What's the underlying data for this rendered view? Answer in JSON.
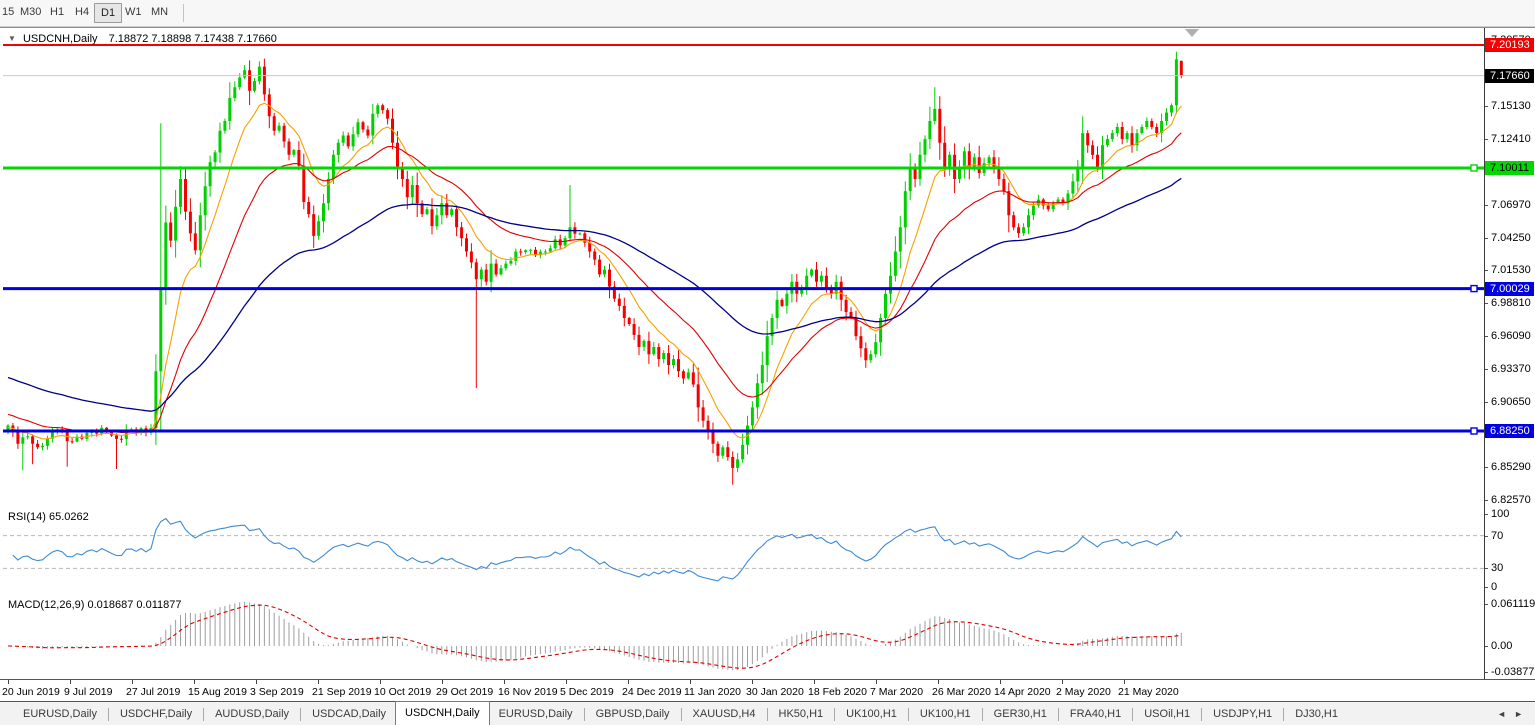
{
  "toolbar": {
    "timeframes": [
      {
        "label": "15",
        "active": false
      },
      {
        "label": "M30",
        "active": false
      },
      {
        "label": "H1",
        "active": false
      },
      {
        "label": "H4",
        "active": false
      },
      {
        "label": "D1",
        "active": true
      },
      {
        "label": "W1",
        "active": false
      },
      {
        "label": "MN",
        "active": false
      }
    ]
  },
  "chart": {
    "title_symbol": "USDCNH,Daily",
    "title_ohlc": "7.18872 7.18898 7.17438 7.17660",
    "dropdown_caret": "▼"
  },
  "indicators": {
    "rsi_label": "RSI(14) 65.0262",
    "macd_label": "MACD(12,26,9) 0.018687 0.011877"
  },
  "chart_data": {
    "type": "candlestick",
    "symbol": "USDCNH",
    "timeframe": "Daily",
    "ohlc_current": {
      "open": "7.18872",
      "high": "7.18898",
      "low": "7.17438",
      "close": "7.17660"
    },
    "num_candles": 239,
    "x_tick_dates": [
      "20 Jun 2019",
      "9 Jul 2019",
      "27 Jul 2019",
      "15 Aug 2019",
      "3 Sep 2019",
      "21 Sep 2019",
      "10 Oct 2019",
      "29 Oct 2019",
      "16 Nov 2019",
      "5 Dec 2019",
      "24 Dec 2019",
      "11 Jan 2020",
      "30 Jan 2020",
      "18 Feb 2020",
      "7 Mar 2020",
      "26 Mar 2020",
      "14 Apr 2020",
      "2 May 2020",
      "21 May 2020"
    ],
    "price_axis_ticks": [
      "7.20570",
      "7.15130",
      "7.12410",
      "7.09690",
      "7.06970",
      "7.04250",
      "7.01530",
      "6.98810",
      "6.96090",
      "6.93370",
      "6.90650",
      "6.87930",
      "6.85290",
      "6.82570"
    ],
    "price_badges": [
      {
        "label": "7.20193",
        "bg": "#f40000",
        "fg": "#ffffff",
        "name": "resistance-level-price"
      },
      {
        "label": "7.17660",
        "bg": "#000000",
        "fg": "#ffffff",
        "name": "current-price"
      },
      {
        "label": "7.10011",
        "bg": "#00d800",
        "fg": "#000000",
        "name": "mid-level-price"
      },
      {
        "label": "7.00029",
        "bg": "#0000e0",
        "fg": "#ffffff",
        "name": "support-level-price"
      },
      {
        "label": "6.88250",
        "bg": "#0000e0",
        "fg": "#ffffff",
        "name": "lower-support-level-price"
      }
    ],
    "levels": [
      {
        "value": "7.20193",
        "color": "#f40000",
        "width": 2,
        "handle": false
      },
      {
        "value": "7.17660",
        "color": "#c8c8c8",
        "width": 1,
        "handle": false
      },
      {
        "value": "7.10011",
        "color": "#00d800",
        "width": 3,
        "handle": true
      },
      {
        "value": "7.00029",
        "color": "#0000e0",
        "width": 3,
        "handle": true
      },
      {
        "value": "6.88250",
        "color": "#0000e0",
        "width": 3,
        "handle": true
      }
    ],
    "moving_averages": [
      {
        "name": "ma-fast",
        "period": 10,
        "color": "#f8a000",
        "seed": 6.885,
        "stroke": 1.1
      },
      {
        "name": "ma-mid",
        "period": 25,
        "color": "#e00000",
        "seed": 6.897,
        "stroke": 1.1
      },
      {
        "name": "ma-slow",
        "period": 65,
        "color": "#000088",
        "seed": 6.928,
        "stroke": 1.3
      }
    ],
    "rsi": {
      "period": 14,
      "value": "65.0262",
      "axis_ticks": [
        "100",
        "70",
        "30",
        "0"
      ],
      "guide_levels": [
        70,
        30
      ],
      "color": "#3d8bd4"
    },
    "macd": {
      "fast": 12,
      "slow": 26,
      "signal": 9,
      "macd_value": "0.018687",
      "signal_value": "0.011877",
      "axis_ticks": [
        "0.061119",
        "0.00",
        "-0.038777"
      ],
      "hist_color": "#9e9e9e",
      "signal_color": "#e00000"
    },
    "candle_colors": {
      "bull": "#00cf00",
      "bear": "#f30000"
    },
    "arrow_marker": {
      "shape": "down-arrow",
      "color": "#b0b0b0"
    },
    "close_waypoints": [
      [
        0,
        6.887
      ],
      [
        2,
        6.872
      ],
      [
        4,
        6.878
      ],
      [
        6,
        6.869
      ],
      [
        8,
        6.876
      ],
      [
        10,
        6.884
      ],
      [
        12,
        6.874
      ],
      [
        15,
        6.876
      ],
      [
        17,
        6.883
      ],
      [
        20,
        6.882
      ],
      [
        22,
        6.876
      ],
      [
        25,
        6.884
      ],
      [
        28,
        6.881
      ],
      [
        29,
        6.885
      ],
      [
        30,
        6.932
      ],
      [
        31,
        7.001
      ],
      [
        32,
        7.055
      ],
      [
        33,
        7.04
      ],
      [
        34,
        7.068
      ],
      [
        35,
        7.091
      ],
      [
        36,
        7.064
      ],
      [
        37,
        7.046
      ],
      [
        38,
        7.032
      ],
      [
        39,
        7.061
      ],
      [
        40,
        7.085
      ],
      [
        41,
        7.105
      ],
      [
        42,
        7.113
      ],
      [
        43,
        7.131
      ],
      [
        44,
        7.139
      ],
      [
        45,
        7.158
      ],
      [
        46,
        7.167
      ],
      [
        47,
        7.175
      ],
      [
        48,
        7.181
      ],
      [
        49,
        7.164
      ],
      [
        50,
        7.172
      ],
      [
        51,
        7.184
      ],
      [
        52,
        7.161
      ],
      [
        53,
        7.143
      ],
      [
        54,
        7.131
      ],
      [
        55,
        7.135
      ],
      [
        56,
        7.122
      ],
      [
        57,
        7.111
      ],
      [
        58,
        7.115
      ],
      [
        59,
        7.102
      ],
      [
        60,
        7.072
      ],
      [
        61,
        7.062
      ],
      [
        62,
        7.044
      ],
      [
        63,
        7.056
      ],
      [
        64,
        7.071
      ],
      [
        65,
        7.091
      ],
      [
        66,
        7.111
      ],
      [
        67,
        7.121
      ],
      [
        68,
        7.127
      ],
      [
        69,
        7.118
      ],
      [
        70,
        7.128
      ],
      [
        71,
        7.138
      ],
      [
        72,
        7.132
      ],
      [
        73,
        7.127
      ],
      [
        74,
        7.145
      ],
      [
        75,
        7.152
      ],
      [
        76,
        7.148
      ],
      [
        77,
        7.141
      ],
      [
        78,
        7.121
      ],
      [
        79,
        7.101
      ],
      [
        80,
        7.091
      ],
      [
        81,
        7.076
      ],
      [
        82,
        7.086
      ],
      [
        83,
        7.071
      ],
      [
        84,
        7.062
      ],
      [
        85,
        7.066
      ],
      [
        86,
        7.052
      ],
      [
        87,
        7.061
      ],
      [
        88,
        7.071
      ],
      [
        89,
        7.061
      ],
      [
        90,
        7.066
      ],
      [
        91,
        7.051
      ],
      [
        92,
        7.042
      ],
      [
        93,
        7.031
      ],
      [
        94,
        7.022
      ],
      [
        95,
        7.008
      ],
      [
        96,
        7.016
      ],
      [
        97,
        7.006
      ],
      [
        98,
        7.021
      ],
      [
        99,
        7.012
      ],
      [
        101,
        7.021
      ],
      [
        103,
        7.031
      ],
      [
        105,
        7.032
      ],
      [
        107,
        7.028
      ],
      [
        109,
        7.031
      ],
      [
        111,
        7.041
      ],
      [
        112,
        7.036
      ],
      [
        113,
        7.042
      ],
      [
        114,
        7.051
      ],
      [
        116,
        7.046
      ],
      [
        118,
        7.031
      ],
      [
        120,
        7.012
      ],
      [
        121,
        7.016
      ],
      [
        122,
        7.002
      ],
      [
        123,
        6.992
      ],
      [
        124,
        6.986
      ],
      [
        125,
        6.976
      ],
      [
        126,
        6.971
      ],
      [
        127,
        6.962
      ],
      [
        128,
        6.952
      ],
      [
        129,
        6.957
      ],
      [
        130,
        6.946
      ],
      [
        131,
        6.952
      ],
      [
        132,
        6.942
      ],
      [
        133,
        6.947
      ],
      [
        134,
        6.937
      ],
      [
        135,
        6.942
      ],
      [
        136,
        6.932
      ],
      [
        137,
        6.926
      ],
      [
        138,
        6.931
      ],
      [
        139,
        6.921
      ],
      [
        140,
        6.902
      ],
      [
        141,
        6.891
      ],
      [
        142,
        6.882
      ],
      [
        143,
        6.872
      ],
      [
        144,
        6.862
      ],
      [
        145,
        6.869
      ],
      [
        146,
        6.861
      ],
      [
        147,
        6.852
      ],
      [
        148,
        6.859
      ],
      [
        149,
        6.871
      ],
      [
        150,
        6.887
      ],
      [
        151,
        6.902
      ],
      [
        152,
        6.922
      ],
      [
        153,
        6.937
      ],
      [
        154,
        6.961
      ],
      [
        155,
        6.976
      ],
      [
        156,
        6.991
      ],
      [
        157,
        6.986
      ],
      [
        158,
        6.996
      ],
      [
        159,
        7.006
      ],
      [
        160,
        6.996
      ],
      [
        161,
        7.001
      ],
      [
        162,
        7.011
      ],
      [
        163,
        7.016
      ],
      [
        164,
        7.006
      ],
      [
        165,
        7.011
      ],
      [
        166,
        7.001
      ],
      [
        167,
        6.996
      ],
      [
        168,
        7.006
      ],
      [
        169,
        6.991
      ],
      [
        170,
        6.981
      ],
      [
        171,
        6.976
      ],
      [
        172,
        6.961
      ],
      [
        173,
        6.951
      ],
      [
        174,
        6.941
      ],
      [
        175,
        6.946
      ],
      [
        176,
        6.956
      ],
      [
        177,
        6.976
      ],
      [
        178,
        6.996
      ],
      [
        179,
        7.011
      ],
      [
        180,
        7.031
      ],
      [
        181,
        7.051
      ],
      [
        182,
        7.081
      ],
      [
        183,
        7.101
      ],
      [
        184,
        7.091
      ],
      [
        185,
        7.111
      ],
      [
        186,
        7.124
      ],
      [
        187,
        7.139
      ],
      [
        188,
        7.149
      ],
      [
        189,
        7.121
      ],
      [
        190,
        7.101
      ],
      [
        191,
        7.111
      ],
      [
        192,
        7.091
      ],
      [
        193,
        7.101
      ],
      [
        194,
        7.114
      ],
      [
        195,
        7.101
      ],
      [
        196,
        7.109
      ],
      [
        197,
        7.096
      ],
      [
        198,
        7.104
      ],
      [
        199,
        7.109
      ],
      [
        200,
        7.101
      ],
      [
        201,
        7.091
      ],
      [
        202,
        7.081
      ],
      [
        203,
        7.061
      ],
      [
        204,
        7.051
      ],
      [
        205,
        7.046
      ],
      [
        206,
        7.051
      ],
      [
        207,
        7.061
      ],
      [
        208,
        7.069
      ],
      [
        209,
        7.074
      ],
      [
        210,
        7.069
      ],
      [
        211,
        7.066
      ],
      [
        212,
        7.071
      ],
      [
        213,
        7.074
      ],
      [
        214,
        7.071
      ],
      [
        215,
        7.079
      ],
      [
        216,
        7.089
      ],
      [
        217,
        7.101
      ],
      [
        218,
        7.129
      ],
      [
        219,
        7.119
      ],
      [
        220,
        7.111
      ],
      [
        221,
        7.101
      ],
      [
        222,
        7.119
      ],
      [
        223,
        7.124
      ],
      [
        224,
        7.129
      ],
      [
        225,
        7.134
      ],
      [
        226,
        7.124
      ],
      [
        227,
        7.129
      ],
      [
        228,
        7.119
      ],
      [
        229,
        7.129
      ],
      [
        230,
        7.134
      ],
      [
        231,
        7.139
      ],
      [
        232,
        7.134
      ],
      [
        233,
        7.129
      ],
      [
        234,
        7.139
      ],
      [
        235,
        7.146
      ],
      [
        236,
        7.152
      ],
      [
        237,
        7.19
      ],
      [
        238,
        7.1766
      ]
    ],
    "overrides": [
      {
        "i": 3,
        "l": 6.85
      },
      {
        "i": 5,
        "l": 6.855
      },
      {
        "i": 12,
        "l": 6.853
      },
      {
        "i": 22,
        "l": 6.851
      },
      {
        "i": 31,
        "h": 7.137,
        "l": 6.882
      },
      {
        "i": 95,
        "l": 6.918
      },
      {
        "i": 114,
        "h": 7.086
      },
      {
        "i": 147,
        "l": 6.838
      },
      {
        "i": 188,
        "h": 7.167
      },
      {
        "i": 237,
        "h": 7.1964,
        "l": 7.145
      },
      {
        "i": 238,
        "o": 7.18872,
        "h": 7.18898,
        "l": 7.17438,
        "c": 7.1766
      }
    ]
  },
  "tabs": {
    "items": [
      {
        "label": "EURUSD,Daily",
        "active": false
      },
      {
        "label": "USDCHF,Daily",
        "active": false
      },
      {
        "label": "AUDUSD,Daily",
        "active": false
      },
      {
        "label": "USDCAD,Daily",
        "active": false
      },
      {
        "label": "USDCNH,Daily",
        "active": true
      },
      {
        "label": "EURUSD,Daily",
        "active": false
      },
      {
        "label": "GBPUSD,Daily",
        "active": false
      },
      {
        "label": "XAUUSD,H4",
        "active": false
      },
      {
        "label": "HK50,H1",
        "active": false
      },
      {
        "label": "UK100,H1",
        "active": false
      },
      {
        "label": "UK100,H1",
        "active": false
      },
      {
        "label": "GER30,H1",
        "active": false
      },
      {
        "label": "FRA40,H1",
        "active": false
      },
      {
        "label": "USOil,H1",
        "active": false
      },
      {
        "label": "USDJPY,H1",
        "active": false
      },
      {
        "label": "DJ30,H1",
        "active": false
      }
    ],
    "scroll_left": "◄",
    "scroll_right": "►"
  }
}
